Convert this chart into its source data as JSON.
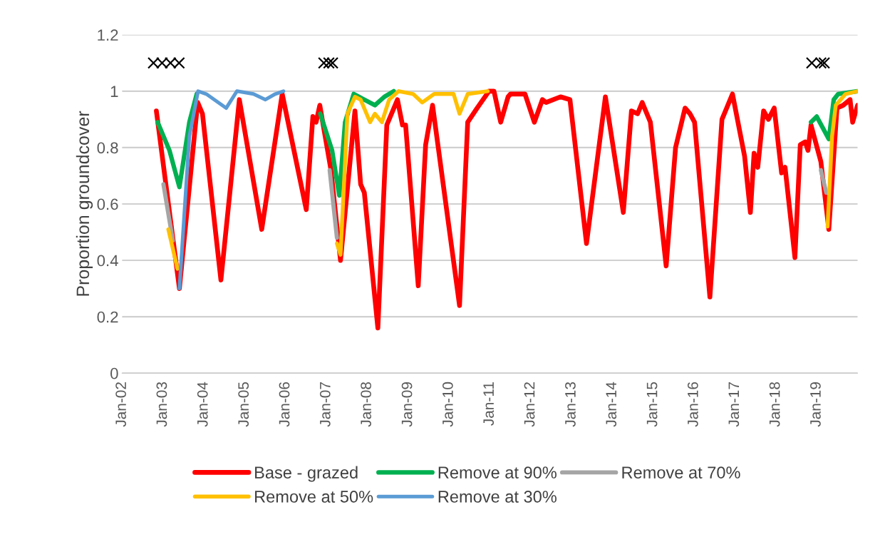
{
  "chart_data": {
    "type": "line",
    "ylabel": "Proportion groundcover",
    "xlim": [
      "2002-01-01",
      "2020-01-01"
    ],
    "ylim": [
      0,
      1.2
    ],
    "xticks": [
      {
        "value": "2002-01",
        "label": "Jan-02"
      },
      {
        "value": "2003-01",
        "label": "Jan-03"
      },
      {
        "value": "2004-01",
        "label": "Jan-04"
      },
      {
        "value": "2005-01",
        "label": "Jan-05"
      },
      {
        "value": "2006-01",
        "label": "Jan-06"
      },
      {
        "value": "2007-01",
        "label": "Jan-07"
      },
      {
        "value": "2008-01",
        "label": "Jan-08"
      },
      {
        "value": "2009-01",
        "label": "Jan-09"
      },
      {
        "value": "2010-01",
        "label": "Jan-10"
      },
      {
        "value": "2011-01",
        "label": "Jan-11"
      },
      {
        "value": "2012-01",
        "label": "Jan-12"
      },
      {
        "value": "2013-01",
        "label": "Jan-13"
      },
      {
        "value": "2014-01",
        "label": "Jan-14"
      },
      {
        "value": "2015-01",
        "label": "Jan-15"
      },
      {
        "value": "2016-01",
        "label": "Jan-16"
      },
      {
        "value": "2017-01",
        "label": "Jan-17"
      },
      {
        "value": "2018-01",
        "label": "Jan-18"
      },
      {
        "value": "2019-01",
        "label": "Jan-19"
      }
    ],
    "yticks": [
      0,
      0.2,
      0.4,
      0.6,
      0.8,
      1,
      1.2
    ],
    "grid": "y",
    "legend": "bottom",
    "series": [
      {
        "name": "Base - grazed",
        "color": "#ff0000",
        "x": [
          "2002-11-03",
          "2003-05-28",
          "2003-11-07",
          "2003-12-20",
          "2004-06-02",
          "2004-11-14",
          "2005-06-02",
          "2005-12-02",
          "2006-07-05",
          "2006-09-02",
          "2006-10-01",
          "2006-11-03",
          "2007-02-11",
          "2007-05-07",
          "2007-09-13",
          "2007-11-03",
          "2007-12-06",
          "2008-04-05",
          "2008-06-24",
          "2008-09-27",
          "2008-11-11",
          "2008-12-09",
          "2009-04-01",
          "2009-06-06",
          "2009-08-07",
          "2010-04-05",
          "2010-06-17",
          "2010-09-09",
          "2010-12-24",
          "2011-02-07",
          "2011-04-08",
          "2011-06-13",
          "2011-07-05",
          "2011-11-11",
          "2012-02-03",
          "2012-04-15",
          "2012-05-18",
          "2012-09-24",
          "2012-12-17",
          "2013-05-14",
          "2013-10-30",
          "2014-04-08",
          "2014-06-20",
          "2014-08-14",
          "2014-09-24",
          "2014-12-06",
          "2015-04-26",
          "2015-07-19",
          "2015-10-12",
          "2015-11-25",
          "2016-01-05",
          "2016-05-21",
          "2016-09-06",
          "2016-12-09",
          "2017-03-27",
          "2017-05-18",
          "2017-06-20",
          "2017-07-23",
          "2017-09-13",
          "2017-10-26",
          "2017-12-17",
          "2018-02-21",
          "2018-03-24",
          "2018-06-20",
          "2018-08-07",
          "2018-09-20",
          "2018-10-15",
          "2018-11-11",
          "2019-02-07",
          "2019-04-19",
          "2019-07-01",
          "2019-08-25",
          "2019-10-26",
          "2019-11-18",
          "2020-01-01"
        ],
        "values": [
          0.93,
          0.3,
          0.96,
          0.92,
          0.33,
          0.97,
          0.51,
          0.99,
          0.58,
          0.91,
          0.89,
          0.95,
          0.72,
          0.4,
          0.93,
          0.67,
          0.64,
          0.16,
          0.88,
          0.97,
          0.88,
          0.88,
          0.31,
          0.81,
          0.95,
          0.24,
          0.89,
          0.94,
          1.0,
          1.0,
          0.89,
          0.98,
          0.99,
          0.99,
          0.89,
          0.97,
          0.96,
          0.98,
          0.97,
          0.46,
          0.98,
          0.57,
          0.93,
          0.92,
          0.96,
          0.89,
          0.38,
          0.8,
          0.94,
          0.92,
          0.89,
          0.27,
          0.9,
          0.99,
          0.77,
          0.57,
          0.78,
          0.73,
          0.93,
          0.9,
          0.94,
          0.71,
          0.73,
          0.41,
          0.81,
          0.82,
          0.79,
          0.88,
          0.75,
          0.51,
          0.94,
          0.95,
          0.97,
          0.89,
          0.95
        ]
      },
      {
        "name": "Remove at 90%",
        "color": "#00b050",
        "x": [
          "2002-11-14",
          "2003-02-28",
          "2003-05-28",
          "2003-08-25",
          "2003-10-30",
          "2005-01-01",
          "2006-11-07",
          "2007-02-21",
          "2007-04-26",
          "2007-06-17",
          "2007-09-02",
          "2007-12-06",
          "2008-03-09",
          "2008-06-02",
          "2008-08-25",
          "2013-01-01",
          "2018-11-11",
          "2019-01-01",
          "2019-04-19",
          "2019-06-02",
          "2019-07-12",
          "2020-01-01"
        ],
        "values": [
          0.89,
          0.79,
          0.66,
          0.89,
          0.99,
          null,
          0.92,
          0.79,
          0.63,
          0.89,
          0.99,
          0.97,
          0.95,
          0.98,
          1.0,
          null,
          0.89,
          0.91,
          0.83,
          0.97,
          0.99,
          1.0
        ]
      },
      {
        "name": "Remove at 70%",
        "color": "#a5a5a5",
        "x": [
          "2003-01-05",
          "2003-03-30",
          "2005-01-01",
          "2007-01-30",
          "2007-04-05",
          "2013-01-01",
          "2019-02-07",
          "2019-03-27"
        ],
        "values": [
          0.67,
          0.47,
          null,
          0.72,
          0.48,
          null,
          0.72,
          0.64
        ]
      },
      {
        "name": "Remove at 50%",
        "color": "#ffc000",
        "x": [
          "2003-02-18",
          "2003-05-11",
          "2005-01-01",
          "2007-04-05",
          "2007-05-07",
          "2007-07-08",
          "2007-09-13",
          "2007-11-03",
          "2008-01-26",
          "2008-03-09",
          "2008-05-11",
          "2008-07-15",
          "2008-10-08",
          "2009-02-14",
          "2009-05-07",
          "2009-08-21",
          "2010-02-11",
          "2010-04-05",
          "2010-06-17",
          "2010-12-13",
          "2013-01-01",
          "2019-04-08",
          "2019-05-18",
          "2019-06-20",
          "2019-09-16",
          "2020-01-01"
        ],
        "values": [
          0.51,
          0.37,
          null,
          0.46,
          0.42,
          0.92,
          0.98,
          0.97,
          0.89,
          0.92,
          0.89,
          0.97,
          1.0,
          0.99,
          0.96,
          0.99,
          0.99,
          0.92,
          0.99,
          1.0,
          null,
          0.52,
          0.84,
          0.95,
          0.99,
          1.0
        ]
      },
      {
        "name": "Remove at 30%",
        "color": "#5b9bd5",
        "x": [
          "2003-05-28",
          "2003-08-25",
          "2003-11-11",
          "2004-01-23",
          "2004-07-19",
          "2004-10-23",
          "2005-03-20",
          "2005-07-05",
          "2005-10-01",
          "2005-12-13"
        ],
        "values": [
          0.3,
          0.84,
          1.0,
          0.99,
          0.94,
          1.0,
          0.99,
          0.97,
          0.99,
          1.0
        ]
      },
      {
        "type": "scatter",
        "marker": "cross",
        "color": "#000000",
        "x": [
          "2002-10-08",
          "2002-12-24",
          "2003-03-09",
          "2003-05-25",
          "2006-12-09",
          "2007-01-23",
          "2007-02-25",
          "2018-11-18",
          "2019-02-07",
          "2019-03-09"
        ],
        "values": [
          1.1,
          1.1,
          1.1,
          1.1,
          1.1,
          1.1,
          1.1,
          1.1,
          1.1,
          1.1
        ]
      }
    ]
  }
}
